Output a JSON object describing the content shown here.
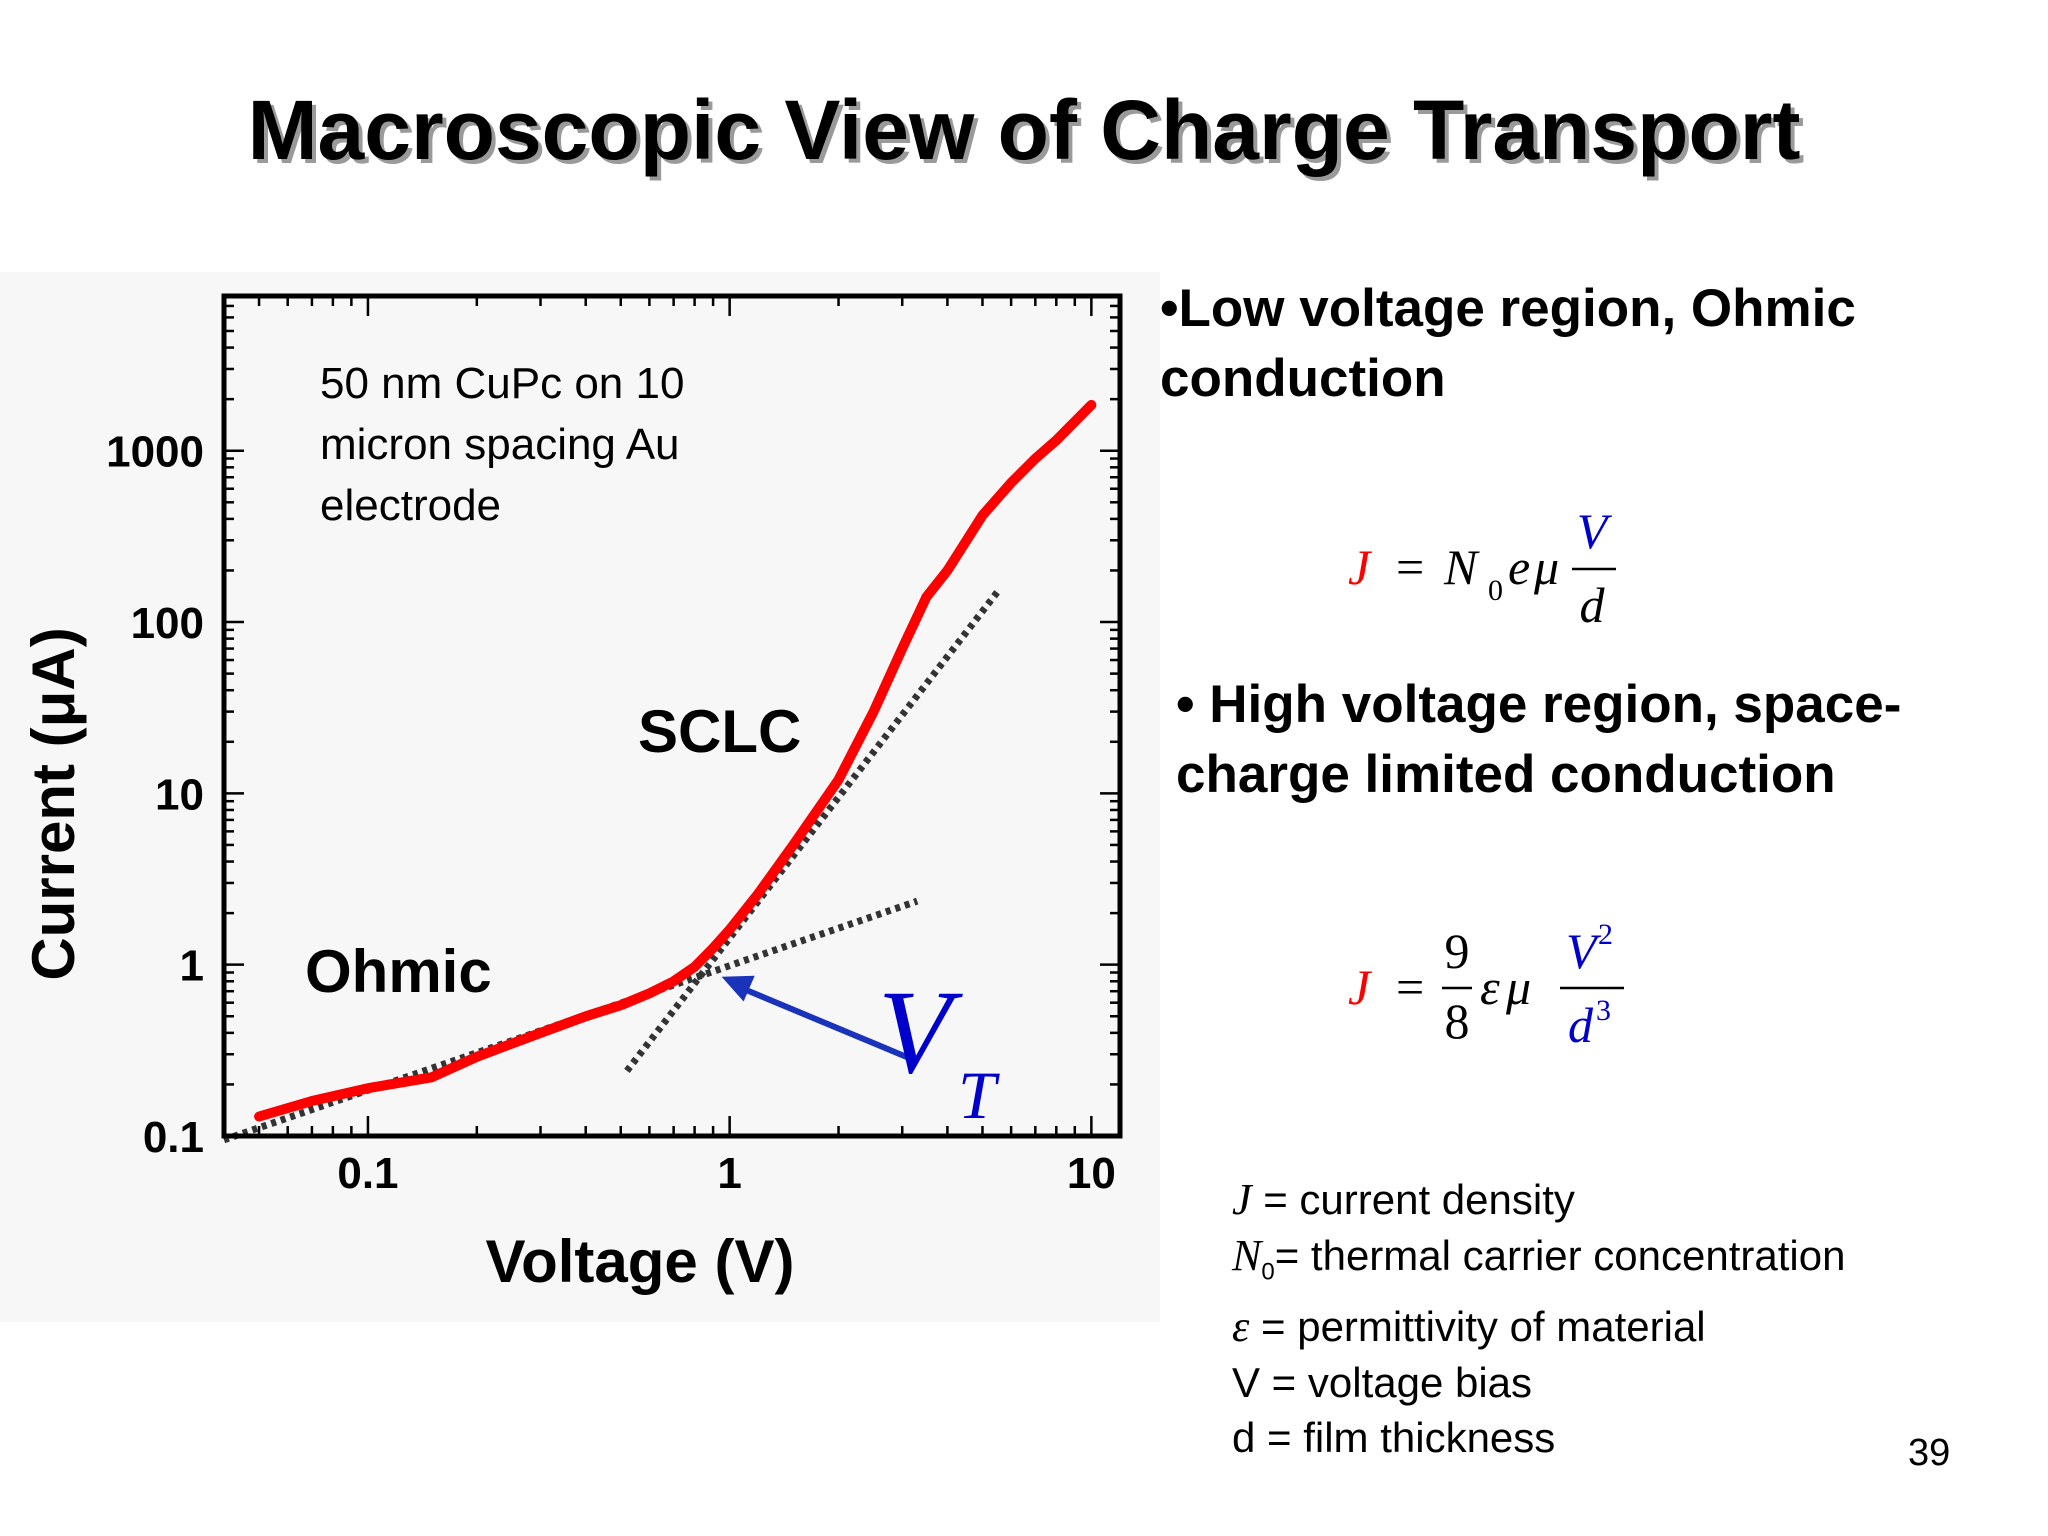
{
  "slide": {
    "title": "Macroscopic View of Charge Transport",
    "page_number": "39"
  },
  "bullets": {
    "ohmic_line1": "•Low voltage region, Ohmic",
    "ohmic_line2": "conduction",
    "sclc_line1": "• High voltage region, space-",
    "sclc_line2": "charge limited conduction"
  },
  "equations": {
    "ohmic": {
      "J": "J",
      "equals": "=",
      "N": "N",
      "sub0": "0",
      "e": "e",
      "mu": "μ",
      "num": "V",
      "den": "d"
    },
    "sclc": {
      "J": "J",
      "equals": "=",
      "num9": "9",
      "den8": "8",
      "eps": "ε",
      "mu": "μ",
      "numV": "V",
      "sup2": "2",
      "den_d": "d",
      "sup3": "3"
    }
  },
  "definitions": [
    {
      "symbol": "J",
      "sub": "",
      "text": " = current density"
    },
    {
      "symbol": "N",
      "sub": "0",
      "text": "= thermal carrier concentration"
    },
    {
      "symbol": "ε",
      "sub": "",
      "text": " = permittivity of material"
    },
    {
      "symbol": "",
      "sub": "",
      "text": "V = voltage bias"
    },
    {
      "symbol": "",
      "sub": "",
      "text": "d = film thickness"
    }
  ],
  "colors": {
    "data_curve": "#ff0000",
    "vt_label": "#0000cc",
    "arrow": "#1a33bb",
    "eq_J": "#ff0000",
    "eq_blue": "#0000cc"
  },
  "chart_data": {
    "type": "line",
    "xlabel": "Voltage (V)",
    "ylabel": "Current (μA)",
    "xscale": "log",
    "yscale": "log",
    "xlim": [
      0.04,
      12
    ],
    "ylim": [
      0.1,
      8000
    ],
    "x_ticks": [
      {
        "value": 0.1,
        "label": "0.1"
      },
      {
        "value": 1,
        "label": "1"
      },
      {
        "value": 10,
        "label": "10"
      }
    ],
    "y_ticks": [
      {
        "value": 0.1,
        "label": "0.1"
      },
      {
        "value": 1,
        "label": "1"
      },
      {
        "value": 10,
        "label": "10"
      },
      {
        "value": 100,
        "label": "100"
      },
      {
        "value": 1000,
        "label": "1000"
      }
    ],
    "annotation_text": [
      "50 nm CuPc on 10",
      "micron spacing Au",
      "electrode"
    ],
    "region_labels": {
      "ohmic": "Ohmic",
      "sclc": "SCLC"
    },
    "vt_label": {
      "main": "V",
      "sub": "T"
    },
    "series": [
      {
        "x": [
          0.05,
          0.07,
          0.1,
          0.15,
          0.2,
          0.3,
          0.4,
          0.5,
          0.6,
          0.7,
          0.8,
          0.9,
          1.0,
          1.2,
          1.5,
          2.0,
          2.5,
          3.0,
          3.5,
          4.0,
          5.0,
          6.0,
          7.0,
          8.0,
          10.0
        ],
        "y": [
          0.13,
          0.16,
          0.19,
          0.22,
          0.29,
          0.4,
          0.5,
          0.58,
          0.68,
          0.8,
          0.97,
          1.25,
          1.6,
          2.6,
          5.0,
          12,
          30,
          70,
          140,
          200,
          420,
          650,
          900,
          1150,
          1850
        ]
      }
    ],
    "fit_lines": [
      {
        "x": [
          0.04,
          3.3
        ],
        "y": [
          0.095,
          2.35
        ]
      },
      {
        "x": [
          0.52,
          5.5
        ],
        "y": [
          0.24,
          150
        ]
      }
    ],
    "vt_arrow": {
      "from": [
        3.2,
        0.28
      ],
      "to": [
        0.95,
        0.85
      ]
    }
  }
}
